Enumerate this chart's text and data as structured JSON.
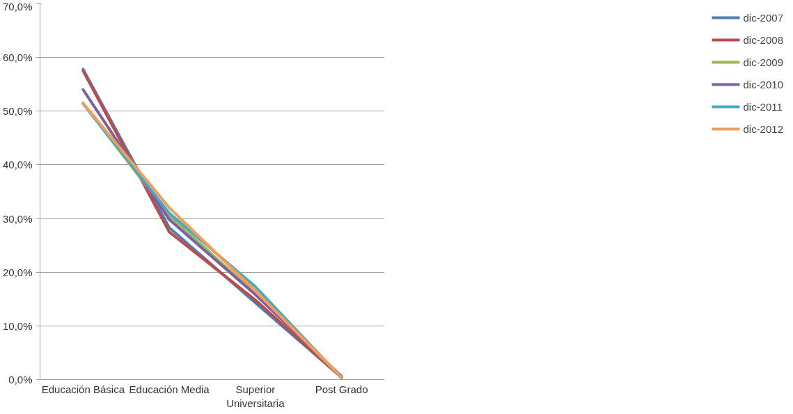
{
  "chart_data": {
    "type": "line",
    "categories": [
      "Educación Básica",
      "Educación Media",
      "Superior Universitaria",
      "Post Grado"
    ],
    "series": [
      {
        "name": "dic-2007",
        "color": "#4a7ebb",
        "values": [
          57.8,
          28.3,
          14.3,
          0.4
        ]
      },
      {
        "name": "dic-2008",
        "color": "#be4b48",
        "values": [
          57.5,
          27.5,
          14.8,
          0.4
        ]
      },
      {
        "name": "dic-2009",
        "color": "#98b954",
        "values": [
          51.5,
          30.5,
          16.0,
          0.5
        ]
      },
      {
        "name": "dic-2010",
        "color": "#7d60a0",
        "values": [
          54.0,
          29.8,
          15.8,
          0.6
        ]
      },
      {
        "name": "dic-2011",
        "color": "#46aac5",
        "values": [
          51.4,
          31.0,
          17.3,
          0.3
        ]
      },
      {
        "name": "dic-2012",
        "color": "#f59d56",
        "values": [
          51.5,
          32.0,
          16.5,
          0.4
        ]
      }
    ],
    "ylim": [
      0,
      70
    ],
    "yticks": [
      {
        "value": 0,
        "label": "0,0%"
      },
      {
        "value": 10,
        "label": "10,0%"
      },
      {
        "value": 20,
        "label": "20,0%"
      },
      {
        "value": 30,
        "label": "30,0%"
      },
      {
        "value": 40,
        "label": "40,0%"
      },
      {
        "value": 50,
        "label": "50,0%"
      },
      {
        "value": 60,
        "label": "60,0%"
      },
      {
        "value": 70,
        "label": "70,0%"
      }
    ],
    "grid": "y",
    "legend": "right",
    "marker": "none",
    "line_style": "solid"
  }
}
